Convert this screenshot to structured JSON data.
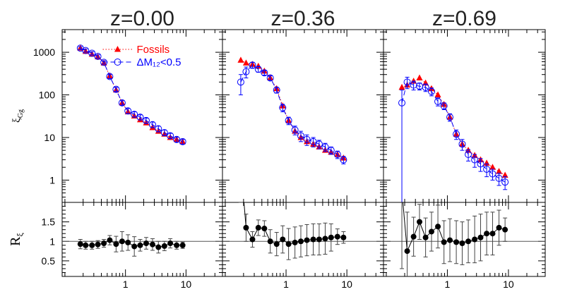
{
  "chart_data": [
    {
      "type": "line",
      "title": "z=0.00",
      "ylabel": "ξ",
      "ylabel_sub": "Gg",
      "xlog": true,
      "ylog": true,
      "legend": "upper center",
      "xlim": [
        0.09,
        40
      ],
      "ylim": [
        0.3,
        3400
      ],
      "xticks": [
        1,
        10
      ],
      "yticks": [
        1,
        10,
        100,
        1000
      ],
      "xminorticks": [
        0.1,
        0.2,
        0.3,
        0.4,
        0.5,
        0.6,
        0.7,
        0.8,
        0.9,
        2,
        3,
        4,
        5,
        6,
        7,
        8,
        9,
        20,
        30,
        40
      ],
      "yminorticks": [
        0.4,
        0.5,
        0.6,
        0.7,
        0.8,
        0.9,
        2,
        3,
        4,
        5,
        6,
        7,
        8,
        9,
        20,
        30,
        40,
        50,
        60,
        70,
        80,
        90,
        200,
        300,
        400,
        500,
        600,
        700,
        800,
        900,
        2000,
        3000
      ],
      "x": [
        0.18,
        0.22,
        0.28,
        0.35,
        0.44,
        0.55,
        0.7,
        0.88,
        1.1,
        1.4,
        1.75,
        2.2,
        2.8,
        3.5,
        4.4,
        5.5,
        7.0,
        8.8
      ],
      "series": [
        {
          "name": "Fossils",
          "color": "#ff0000",
          "marker": "triangle",
          "linestyle": "dotted",
          "values": [
            1250,
            1050,
            900,
            780,
            560,
            280,
            130,
            65,
            40,
            32,
            26,
            22,
            17,
            14,
            12,
            10,
            9,
            8
          ]
        },
        {
          "name": "ΔM₁₂<0.5",
          "color": "#0000ff",
          "marker": "circle-open",
          "linestyle": "dashed",
          "values": [
            1250,
            1100,
            950,
            800,
            580,
            270,
            135,
            65,
            42,
            35,
            30,
            25,
            20,
            16,
            13,
            11,
            9,
            8
          ],
          "errors": [
            100,
            90,
            80,
            70,
            50,
            30,
            15,
            8,
            6,
            5,
            4,
            3.5,
            3,
            2.5,
            2,
            1.5,
            1.2,
            1
          ]
        }
      ]
    },
    {
      "type": "line",
      "title": "z=0.36",
      "xlog": true,
      "ylog": true,
      "xlim": [
        0.09,
        40
      ],
      "ylim": [
        0.3,
        3400
      ],
      "xticks": [
        1,
        10
      ],
      "yticks": [
        1,
        10,
        100,
        1000
      ],
      "xminorticks": [
        0.1,
        0.2,
        0.3,
        0.4,
        0.5,
        0.6,
        0.7,
        0.8,
        0.9,
        2,
        3,
        4,
        5,
        6,
        7,
        8,
        9,
        20,
        30,
        40
      ],
      "yminorticks": [
        0.4,
        0.5,
        0.6,
        0.7,
        0.8,
        0.9,
        2,
        3,
        4,
        5,
        6,
        7,
        8,
        9,
        20,
        30,
        40,
        50,
        60,
        70,
        80,
        90,
        200,
        300,
        400,
        500,
        600,
        700,
        800,
        900,
        2000,
        3000
      ],
      "x": [
        0.18,
        0.22,
        0.28,
        0.35,
        0.44,
        0.55,
        0.7,
        0.88,
        1.1,
        1.4,
        1.75,
        2.2,
        2.8,
        3.5,
        4.4,
        5.5,
        7.0,
        8.8
      ],
      "series": [
        {
          "name": "Fossils",
          "color": "#ff0000",
          "marker": "triangle",
          "linestyle": "dotted",
          "values": [
            650,
            560,
            520,
            470,
            360,
            250,
            140,
            55,
            25,
            14,
            10,
            8,
            7,
            6,
            5,
            4.5,
            4,
            3.3
          ]
        },
        {
          "name": "ΔM₁₂<0.5",
          "color": "#0000ff",
          "marker": "circle-open",
          "linestyle": "dashed",
          "values": [
            200,
            350,
            500,
            400,
            330,
            250,
            130,
            50,
            25,
            15,
            11,
            9,
            8,
            7,
            6,
            5,
            4,
            3
          ],
          "errors": [
            100,
            100,
            80,
            60,
            40,
            30,
            20,
            10,
            5,
            3.5,
            3,
            2.5,
            2,
            1.6,
            1.3,
            1,
            0.8,
            0.6
          ]
        }
      ]
    },
    {
      "type": "line",
      "title": "z=0.69",
      "xlog": true,
      "ylog": true,
      "xlim": [
        0.09,
        40
      ],
      "ylim": [
        0.3,
        3400
      ],
      "xticks": [
        1,
        10
      ],
      "yticks": [
        1,
        10,
        100,
        1000
      ],
      "xminorticks": [
        0.1,
        0.2,
        0.3,
        0.4,
        0.5,
        0.6,
        0.7,
        0.8,
        0.9,
        2,
        3,
        4,
        5,
        6,
        7,
        8,
        9,
        20,
        30,
        40
      ],
      "yminorticks": [
        0.4,
        0.5,
        0.6,
        0.7,
        0.8,
        0.9,
        2,
        3,
        4,
        5,
        6,
        7,
        8,
        9,
        20,
        30,
        40,
        50,
        60,
        70,
        80,
        90,
        200,
        300,
        400,
        500,
        600,
        700,
        800,
        900,
        2000,
        3000
      ],
      "x": [
        0.18,
        0.22,
        0.28,
        0.35,
        0.44,
        0.55,
        0.7,
        0.88,
        1.1,
        1.4,
        1.75,
        2.2,
        2.8,
        3.5,
        4.4,
        5.5,
        7.0,
        8.8
      ],
      "series": [
        {
          "name": "Fossils",
          "color": "#ff0000",
          "marker": "triangle",
          "linestyle": "dotted",
          "values": [
            150,
            170,
            210,
            250,
            190,
            140,
            100,
            60,
            30,
            12,
            7,
            5,
            3.8,
            3,
            2.5,
            2,
            1.6,
            1.3
          ]
        },
        {
          "name": "ΔM₁₂<0.5",
          "color": "#0000ff",
          "marker": "circle-open",
          "linestyle": "dashed",
          "values": [
            65,
            200,
            170,
            160,
            150,
            120,
            70,
            55,
            30,
            12,
            7,
            4,
            3,
            2.4,
            1.8,
            1.4,
            1.1,
            0.9
          ],
          "errors": [
            65,
            60,
            40,
            30,
            30,
            25,
            15,
            10,
            6,
            3,
            2,
            1.2,
            1,
            0.8,
            0.6,
            0.4,
            0.35,
            0.3
          ]
        }
      ]
    },
    {
      "type": "line",
      "ylabel": "R",
      "ylabel_sub": "ξ",
      "xlog": true,
      "refline": 1,
      "xlim": [
        0.09,
        40
      ],
      "ylim": [
        0.1,
        2.0
      ],
      "xticks": [
        1,
        10
      ],
      "yticks": [
        0.5,
        1,
        1.5
      ],
      "xminorticks": [
        0.1,
        0.2,
        0.3,
        0.4,
        0.5,
        0.6,
        0.7,
        0.8,
        0.9,
        2,
        3,
        4,
        5,
        6,
        7,
        8,
        9,
        20,
        30,
        40
      ],
      "yminorticks": [
        0.2,
        0.3,
        0.4,
        0.6,
        0.7,
        0.8,
        0.9,
        1.1,
        1.2,
        1.3,
        1.4,
        1.6,
        1.7,
        1.8,
        1.9
      ],
      "x": [
        0.18,
        0.22,
        0.28,
        0.35,
        0.44,
        0.55,
        0.7,
        0.88,
        1.1,
        1.4,
        1.75,
        2.2,
        2.8,
        3.5,
        4.4,
        5.5,
        7.0,
        8.8
      ],
      "series": [
        {
          "color": "#000000",
          "marker": "circle",
          "linestyle": "solid",
          "values": [
            0.93,
            0.9,
            0.9,
            0.92,
            0.95,
            1.03,
            0.93,
            1.0,
            0.97,
            0.87,
            0.9,
            0.95,
            0.92,
            0.85,
            0.88,
            0.95,
            0.9,
            0.9
          ],
          "errors": [
            0.12,
            0.1,
            0.1,
            0.1,
            0.1,
            0.12,
            0.2,
            0.25,
            0.2,
            0.25,
            0.15,
            0.15,
            0.15,
            0.15,
            0.12,
            0.12,
            0.1,
            0.08
          ]
        }
      ]
    },
    {
      "type": "line",
      "xlog": true,
      "refline": 1,
      "xlim": [
        0.09,
        40
      ],
      "ylim": [
        0.1,
        2.0
      ],
      "xticks": [
        1,
        10
      ],
      "yticks": [
        0.5,
        1,
        1.5
      ],
      "xminorticks": [
        0.1,
        0.2,
        0.3,
        0.4,
        0.5,
        0.6,
        0.7,
        0.8,
        0.9,
        2,
        3,
        4,
        5,
        6,
        7,
        8,
        9,
        20,
        30,
        40
      ],
      "yminorticks": [
        0.2,
        0.3,
        0.4,
        0.6,
        0.7,
        0.8,
        0.9,
        1.1,
        1.2,
        1.3,
        1.4,
        1.6,
        1.7,
        1.8,
        1.9
      ],
      "x": [
        0.18,
        0.22,
        0.28,
        0.35,
        0.44,
        0.55,
        0.7,
        0.88,
        1.1,
        1.4,
        1.75,
        2.2,
        2.8,
        3.5,
        4.4,
        5.5,
        7.0,
        8.8
      ],
      "series": [
        {
          "color": "#000000",
          "marker": "circle",
          "linestyle": "solid",
          "values": [
            3.0,
            1.35,
            1.05,
            1.35,
            1.33,
            1.0,
            0.93,
            1.05,
            0.93,
            0.97,
            1.0,
            1.03,
            1.05,
            1.05,
            1.07,
            1.1,
            1.12,
            1.1
          ],
          "errors": [
            1.0,
            0.35,
            0.2,
            0.2,
            0.2,
            0.3,
            0.3,
            0.35,
            0.4,
            0.4,
            0.4,
            0.4,
            0.4,
            0.4,
            0.4,
            0.35,
            0.2,
            0.15
          ]
        }
      ]
    },
    {
      "type": "line",
      "xlog": true,
      "refline": 1,
      "xlim": [
        0.09,
        40
      ],
      "ylim": [
        0.1,
        2.0
      ],
      "xticks": [
        1,
        10
      ],
      "yticks": [
        0.5,
        1,
        1.5
      ],
      "xminorticks": [
        0.1,
        0.2,
        0.3,
        0.4,
        0.5,
        0.6,
        0.7,
        0.8,
        0.9,
        2,
        3,
        4,
        5,
        6,
        7,
        8,
        9,
        20,
        30,
        40
      ],
      "yminorticks": [
        0.2,
        0.3,
        0.4,
        0.6,
        0.7,
        0.8,
        0.9,
        1.1,
        1.2,
        1.3,
        1.4,
        1.6,
        1.7,
        1.8,
        1.9
      ],
      "x": [
        0.18,
        0.22,
        0.28,
        0.35,
        0.44,
        0.55,
        0.7,
        0.88,
        1.1,
        1.4,
        1.75,
        2.2,
        2.8,
        3.5,
        4.4,
        5.5,
        7.0,
        8.8
      ],
      "series": [
        {
          "color": "#000000",
          "marker": "circle",
          "linestyle": "solid",
          "values": [
            2.3,
            0.75,
            1.12,
            1.5,
            1.1,
            1.25,
            1.38,
            0.98,
            1.03,
            0.98,
            0.95,
            1.0,
            1.05,
            1.1,
            1.2,
            1.2,
            1.35,
            1.3
          ],
          "errors": [
            2.0,
            1.0,
            0.5,
            0.45,
            0.5,
            0.5,
            0.55,
            0.55,
            0.55,
            0.55,
            0.55,
            0.55,
            0.6,
            0.6,
            0.55,
            0.55,
            0.45,
            0.3
          ]
        }
      ]
    }
  ]
}
